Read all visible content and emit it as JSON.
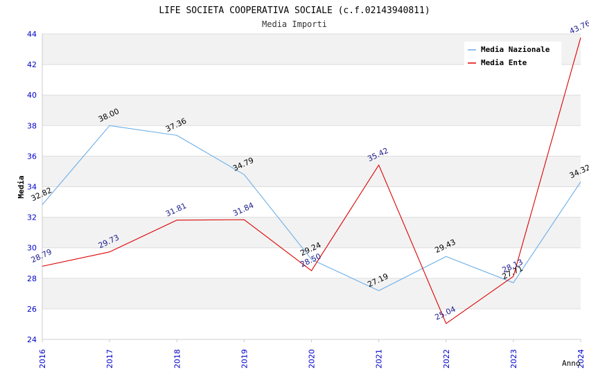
{
  "chart_data": {
    "type": "line",
    "title": "LIFE SOCIETA COOPERATIVA SOCIALE (c.f.02143940811)",
    "subtitle": "Media Importi",
    "xlabel": "Anno",
    "ylabel": "Media",
    "categories": [
      "2016",
      "2017",
      "2018",
      "2019",
      "2020",
      "2021",
      "2022",
      "2023",
      "2024"
    ],
    "ylim": [
      24,
      44
    ],
    "yticks": [
      24,
      26,
      28,
      30,
      32,
      34,
      36,
      38,
      40,
      42,
      44
    ],
    "legend_position": "top-right",
    "series": [
      {
        "name": "Media Nazionale",
        "color": "#6aaee8",
        "label_color": "#000000",
        "values": [
          32.82,
          38.0,
          37.36,
          34.79,
          29.24,
          27.19,
          29.43,
          27.71,
          34.32
        ],
        "labels": [
          "32.82",
          "38.00",
          "37.36",
          "34.79",
          "29.24",
          "27.19",
          "29.43",
          "27.71",
          "34.32"
        ]
      },
      {
        "name": "Media Ente",
        "color": "#dd0000",
        "label_color": "#1a1a8c",
        "values": [
          28.79,
          29.73,
          31.81,
          31.84,
          28.5,
          35.42,
          25.04,
          28.13,
          43.76
        ],
        "labels": [
          "28.79",
          "29.73",
          "31.81",
          "31.84",
          "28.50",
          "35.42",
          "25.04",
          "28.13",
          "43.76"
        ]
      }
    ],
    "colors": {
      "band": "#f2f2f2",
      "grid": "#dddddd",
      "tick_label": "#0000cc",
      "title": "#000000",
      "subtitle": "#333333"
    }
  }
}
